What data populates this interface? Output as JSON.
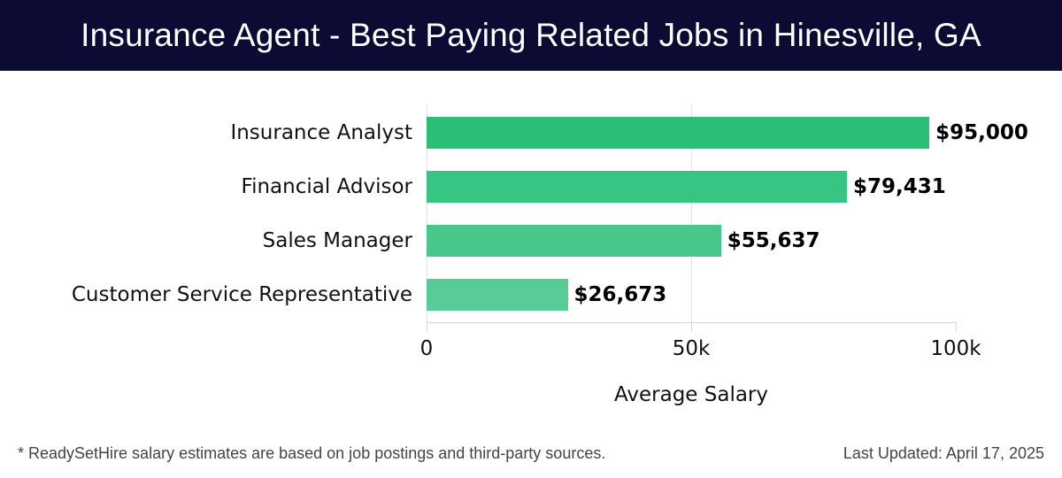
{
  "header": {
    "title": "Insurance Agent - Best Paying Related Jobs in Hinesville, GA"
  },
  "chart_data": {
    "type": "bar",
    "orientation": "horizontal",
    "title": "Insurance Agent - Best Paying Related Jobs in Hinesville, GA",
    "categories": [
      "Insurance Analyst",
      "Financial Advisor",
      "Sales Manager",
      "Customer Service Representative"
    ],
    "values": [
      95000,
      79431,
      55637,
      26673
    ],
    "value_labels": [
      "$95,000",
      "$79,431",
      "$55,637",
      "$26,673"
    ],
    "bar_colors": [
      "#2abf77",
      "#38c482",
      "#47c78a",
      "#58cc96"
    ],
    "xlabel": "Average Salary",
    "ylabel": "",
    "xlim": [
      0,
      100000
    ],
    "xticks": [
      0,
      50000,
      100000
    ],
    "xtick_labels": [
      "0",
      "50k",
      "100k"
    ],
    "grid": true,
    "legend": false
  },
  "footer": {
    "note": "* ReadySetHire salary estimates are based on job postings and third-party sources.",
    "updated": "Last Updated: April 17, 2025"
  }
}
